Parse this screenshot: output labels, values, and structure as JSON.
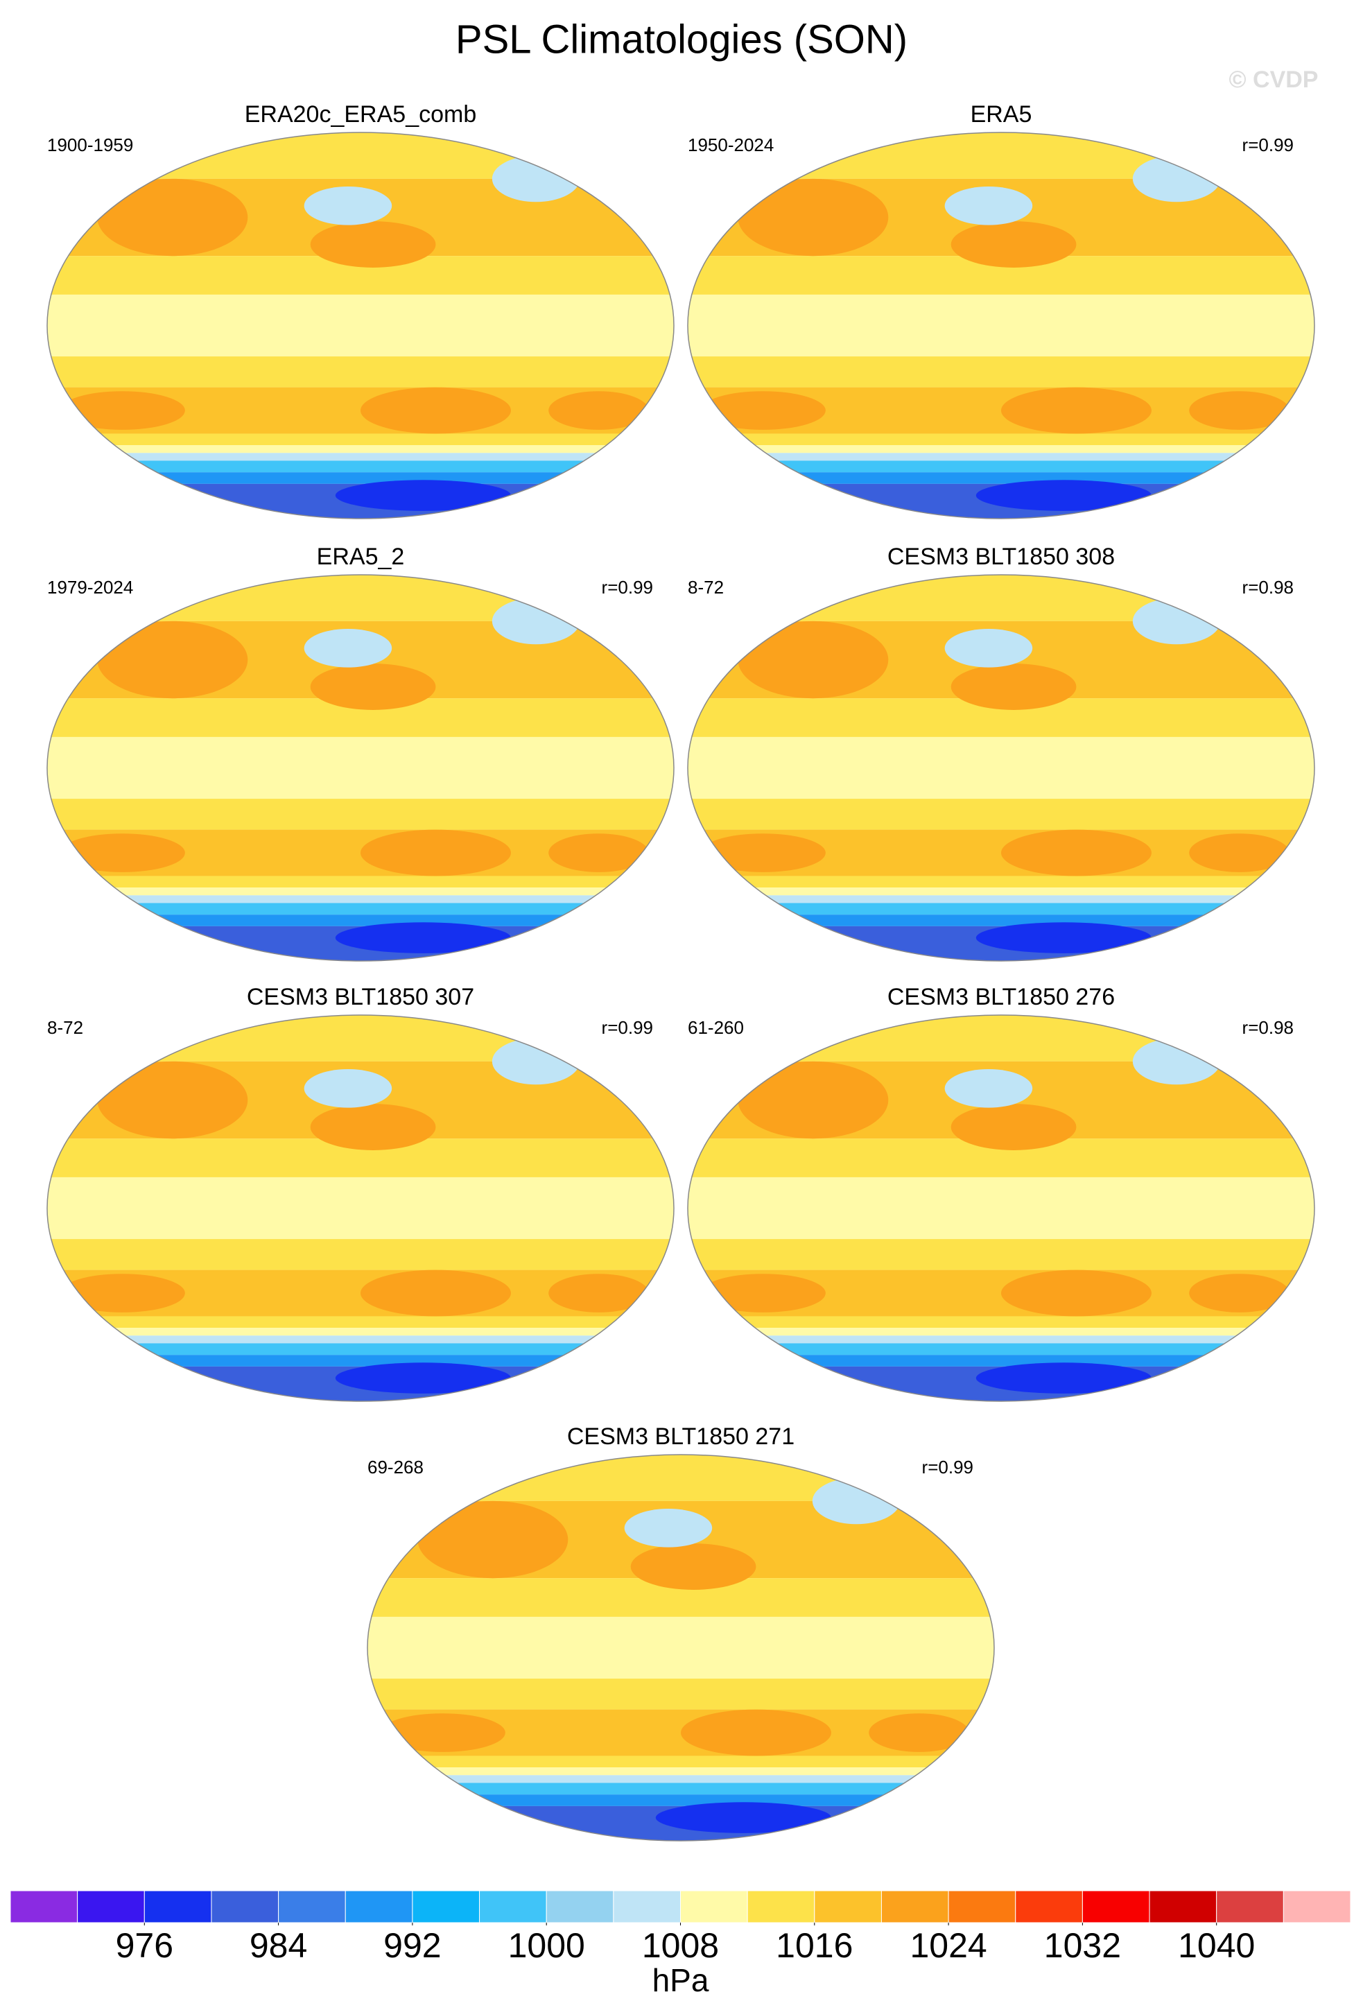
{
  "title": "PSL Climatologies (SON)",
  "watermark": "© CVDP",
  "panels": [
    {
      "title": "ERA20c_ERA5_comb",
      "period": "1900-1959"
    },
    {
      "title": "ERA5",
      "period": "1950-2024",
      "corr": "r=0.99"
    },
    {
      "title": "ERA5_2",
      "period": "1979-2024",
      "corr": "r=0.99"
    },
    {
      "title": "CESM3 BLT1850 308",
      "period": "8-72",
      "corr": "r=0.98"
    },
    {
      "title": "CESM3 BLT1850 307",
      "period": "8-72",
      "corr": "r=0.99"
    },
    {
      "title": "CESM3 BLT1850 276",
      "period": "61-260",
      "corr": "r=0.98"
    },
    {
      "title": "CESM3 BLT1850 271",
      "period": "69-268",
      "corr": "r=0.99"
    }
  ],
  "colorbar": {
    "unit": "hPa",
    "lim": [
      968,
      1048
    ],
    "ticks": [
      976,
      984,
      992,
      1000,
      1008,
      1016,
      1024,
      1032,
      1040
    ],
    "colors": [
      "#8a2be2",
      "#3a16f0",
      "#1530f0",
      "#3a5fdc",
      "#3a7ee8",
      "#1f96f5",
      "#0cb4f8",
      "#40c4f8",
      "#94d2f0",
      "#bfe4f6",
      "#fffaa8",
      "#fde24a",
      "#fcc22b",
      "#fba21c",
      "#fb7a10",
      "#fb3c0c",
      "#f80000",
      "#d00000",
      "#dc4040",
      "#ffb4b4"
    ]
  }
}
